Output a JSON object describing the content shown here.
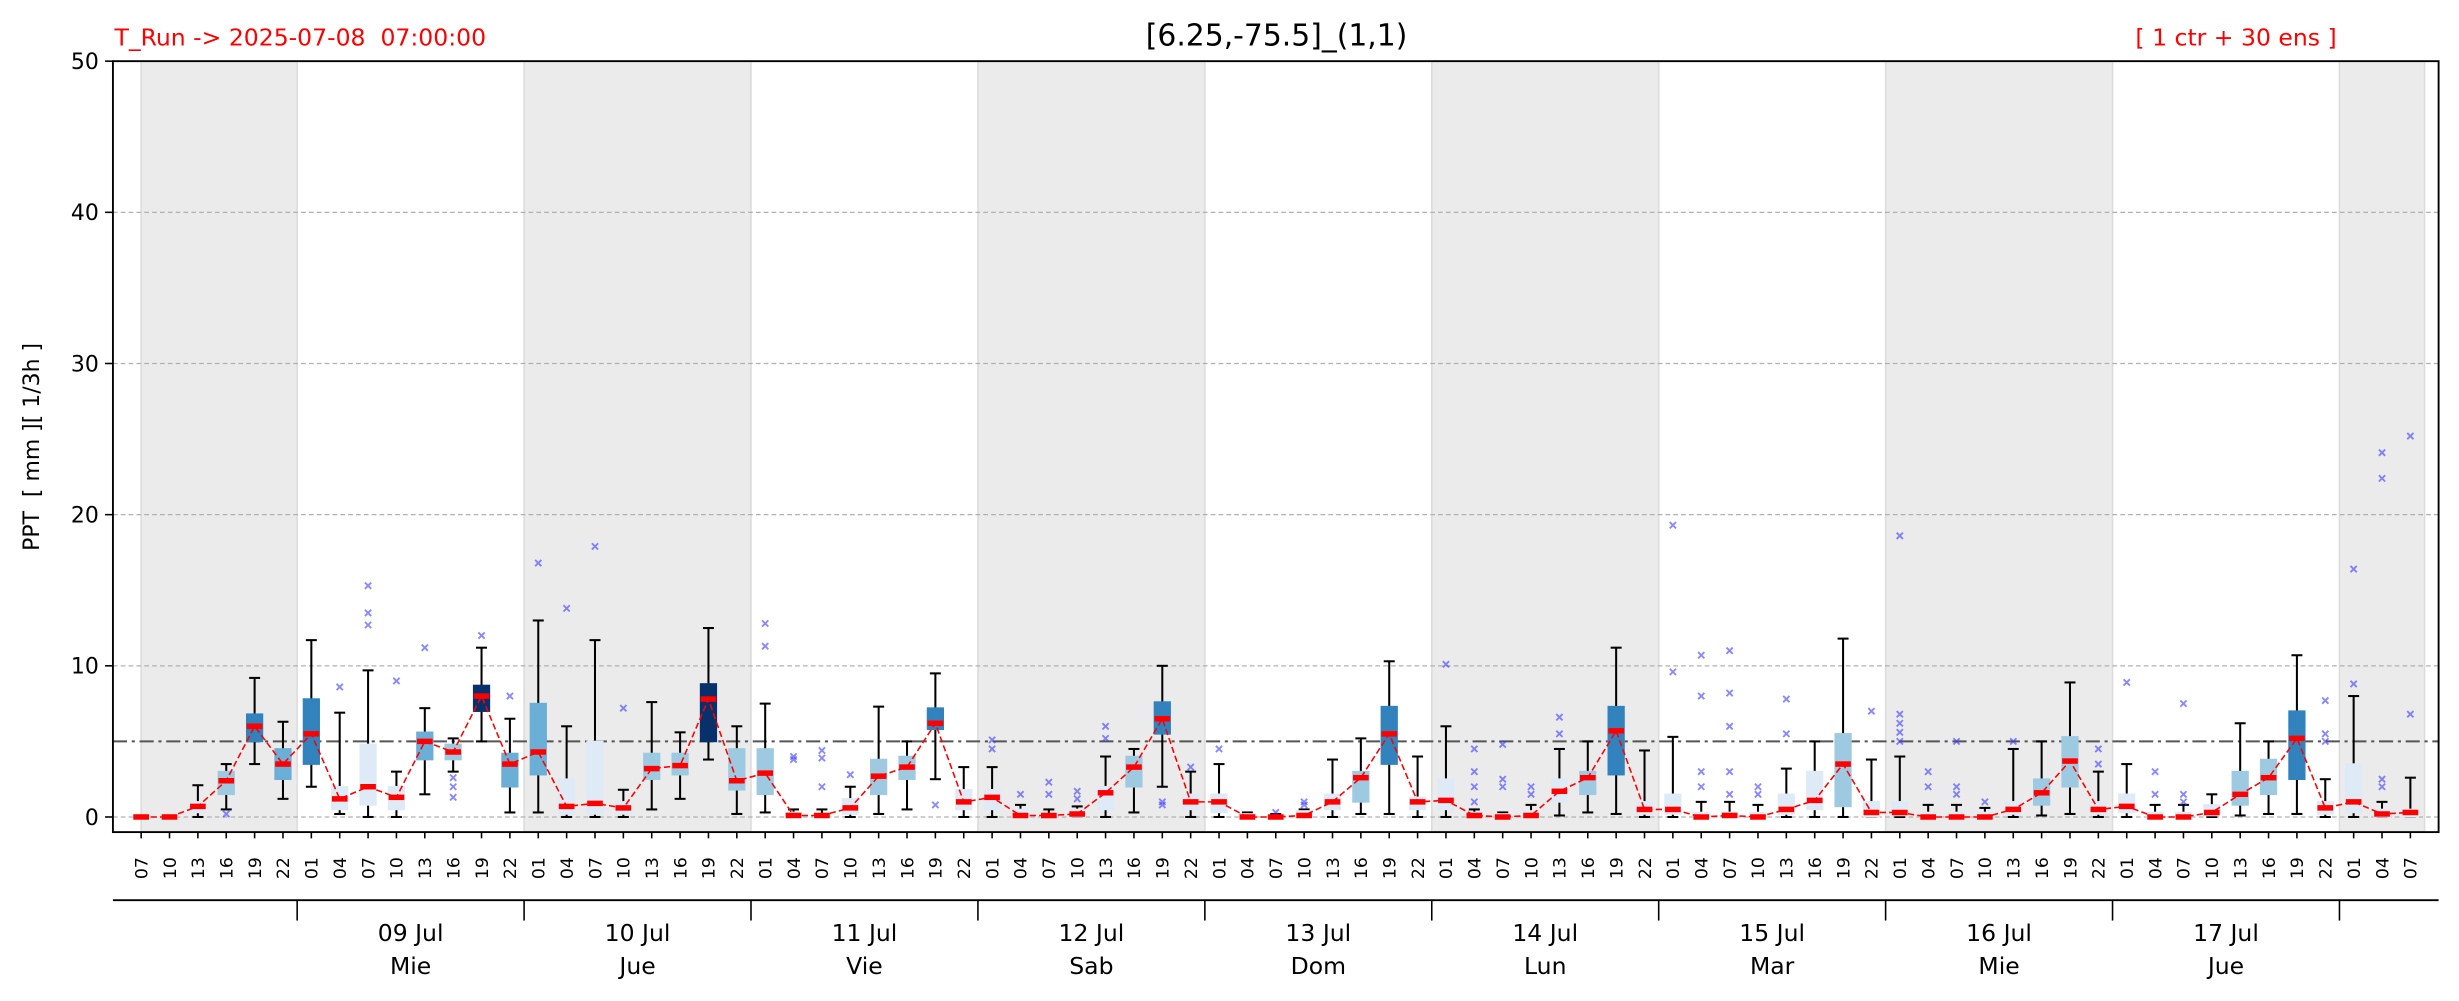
{
  "chart_data": {
    "type": "box",
    "title": "[6.25,-75.5]_(1,1)",
    "run_label": "T_Run -> 2025-07-08  07:00:00",
    "members_label": "[ 1 ctr + 30 ens ]",
    "y_label": "PPT  [ mm ][ 1/3h ]",
    "ylim": [
      -1,
      50
    ],
    "yticks": [
      0,
      10,
      20,
      30,
      40,
      50
    ],
    "grid": true,
    "threshold": 5,
    "categories": [
      "07",
      "10",
      "13",
      "16",
      "19",
      "22",
      "01",
      "04",
      "07",
      "10",
      "13",
      "16",
      "19",
      "22",
      "01",
      "04",
      "07",
      "10",
      "13",
      "16",
      "19",
      "22",
      "01",
      "04",
      "07",
      "10",
      "13",
      "16",
      "19",
      "22",
      "01",
      "04",
      "07",
      "10",
      "13",
      "16",
      "19",
      "22",
      "01",
      "04",
      "07",
      "10",
      "13",
      "16",
      "19",
      "22",
      "01",
      "04",
      "07",
      "10",
      "13",
      "16",
      "19",
      "22",
      "01",
      "04",
      "07",
      "10",
      "13",
      "16",
      "19",
      "22",
      "01",
      "04",
      "07",
      "10",
      "13",
      "16",
      "19",
      "22",
      "01",
      "04",
      "07",
      "10",
      "13",
      "16",
      "19",
      "22",
      "01",
      "04",
      "07"
    ],
    "days": [
      {
        "date": "09 Jul",
        "weekday": "Mie"
      },
      {
        "date": "10 Jul",
        "weekday": "Jue"
      },
      {
        "date": "11 Jul",
        "weekday": "Vie"
      },
      {
        "date": "12 Jul",
        "weekday": "Sab"
      },
      {
        "date": "13 Jul",
        "weekday": "Dom"
      },
      {
        "date": "14 Jul",
        "weekday": "Lun"
      },
      {
        "date": "15 Jul",
        "weekday": "Mar"
      },
      {
        "date": "16 Jul",
        "weekday": "Mie"
      },
      {
        "date": "17 Jul",
        "weekday": "Jue"
      }
    ],
    "median": [
      0,
      0,
      0.7,
      2.4,
      6,
      3.5,
      5.5,
      1.2,
      2,
      1.3,
      5,
      4.3,
      8,
      3.5,
      4.3,
      0.7,
      0.9,
      0.6,
      3.2,
      3.4,
      7.8,
      2.4,
      2.9,
      0.1,
      0.1,
      0.6,
      2.7,
      3.3,
      6.2,
      1,
      1.3,
      0.1,
      0.1,
      0.2,
      1.6,
      3.3,
      6.5,
      1,
      1,
      0,
      0,
      0.1,
      1,
      2.6,
      5.5,
      1,
      1.1,
      0.1,
      0,
      0.1,
      1.7,
      2.6,
      5.7,
      0.5,
      0.5,
      0,
      0.1,
      0,
      0.5,
      1.1,
      3.5,
      0.3,
      0.3,
      0,
      0,
      0,
      0.5,
      1.6,
      3.7,
      0.5,
      0.7,
      0,
      0,
      0.3,
      1.5,
      2.6,
      5.2,
      0.6,
      1,
      0.2,
      0.3
    ],
    "q1": [
      0,
      0,
      0.3,
      1.5,
      5,
      2.5,
      3.5,
      0.5,
      0.8,
      0.5,
      3.8,
      3.8,
      7,
      2,
      2.8,
      0.2,
      0.2,
      0.2,
      2.5,
      2.8,
      5,
      1.8,
      1.5,
      0,
      0,
      0.2,
      1.5,
      2.5,
      5.8,
      0.5,
      0.5,
      0,
      0,
      0,
      0.5,
      2,
      5.5,
      0.5,
      0.3,
      0,
      0,
      0,
      0.5,
      1,
      3.5,
      0.5,
      0.5,
      0,
      0,
      0,
      1,
      1.5,
      2.8,
      0.2,
      0.2,
      0,
      0,
      0,
      0.2,
      0.5,
      0.7,
      0,
      0.1,
      0,
      0,
      0,
      0.2,
      0.8,
      2,
      0.2,
      0.3,
      0,
      0,
      0.1,
      0.8,
      1.5,
      2.5,
      0.2,
      0.3,
      0,
      0
    ],
    "q3": [
      0.1,
      0.1,
      1,
      3,
      6.8,
      4.5,
      7.8,
      2,
      4.8,
      2,
      5.6,
      4.8,
      8.7,
      4.2,
      7.5,
      2.5,
      5,
      1,
      4.2,
      4.2,
      8.8,
      4.5,
      4.5,
      0.3,
      0.2,
      1.2,
      3.8,
      4,
      7.2,
      1.8,
      1.8,
      0.5,
      0.2,
      0.5,
      2,
      4,
      7.6,
      1.5,
      1.5,
      0.2,
      0.1,
      0.4,
      1.5,
      3,
      7.3,
      1.3,
      2.5,
      0.3,
      0.2,
      0.4,
      2.5,
      3,
      7.3,
      1,
      1.5,
      0.3,
      0.3,
      0.3,
      1.5,
      3,
      5.5,
      1,
      1,
      0.3,
      0.3,
      0.3,
      1,
      2.5,
      5.3,
      1,
      1.5,
      0.3,
      0.3,
      0.8,
      3,
      3.8,
      7,
      1,
      3.5,
      0.5,
      0.5
    ],
    "whisker_low": [
      0,
      0,
      0,
      0.5,
      3.5,
      1.2,
      2,
      0.2,
      0,
      0,
      1.5,
      3,
      5,
      0.3,
      0.3,
      0,
      0,
      0,
      0.5,
      1.2,
      3.8,
      0.2,
      0.3,
      0,
      0,
      0,
      0.2,
      0.5,
      2.5,
      0,
      0,
      0,
      0,
      0,
      0,
      0.3,
      2,
      0,
      0,
      0,
      0,
      0,
      0,
      0.2,
      0.2,
      0,
      0,
      0,
      0,
      0,
      0.1,
      0.3,
      0.2,
      0,
      0,
      0,
      0,
      0,
      0,
      0,
      0,
      0,
      0,
      0,
      0,
      0,
      0,
      0.1,
      0.2,
      0,
      0,
      0,
      0,
      0,
      0.1,
      0.2,
      0.2,
      0,
      0,
      0,
      0
    ],
    "whisker_high": [
      0.1,
      0.1,
      2.1,
      3.5,
      9.2,
      6.3,
      11.7,
      6.9,
      9.7,
      3,
      7.2,
      5.2,
      11.2,
      6.5,
      13,
      6,
      11.7,
      1.8,
      7.6,
      5.6,
      12.5,
      6,
      7.5,
      0.5,
      0.5,
      2,
      7.3,
      5,
      9.5,
      3.3,
      3.3,
      0.8,
      0.5,
      0.7,
      4,
      4.5,
      10,
      3,
      3.5,
      0.3,
      0.2,
      0.5,
      3.8,
      5.2,
      10.3,
      4,
      6,
      0.5,
      0.3,
      0.8,
      4.5,
      5,
      11.2,
      4.4,
      5.3,
      1,
      1,
      0.8,
      3.2,
      5,
      11.8,
      3.8,
      4,
      0.8,
      0.8,
      0.6,
      4.5,
      5,
      8.9,
      3,
      3.5,
      0.8,
      0.8,
      1.5,
      6.2,
      5,
      10.7,
      2.5,
      8,
      1,
      2.6
    ],
    "outliers": [
      [],
      [],
      [],
      [
        0.2
      ],
      [],
      [],
      [],
      [
        8.6
      ],
      [
        12.7,
        13.5,
        15.3
      ],
      [
        9
      ],
      [
        11.2
      ],
      [
        1.3,
        2,
        2.6
      ],
      [
        12
      ],
      [
        8
      ],
      [
        16.8
      ],
      [
        13.8
      ],
      [
        17.9
      ],
      [
        7.2
      ],
      [],
      [],
      [],
      [],
      [
        11.3,
        12.8
      ],
      [
        3.8,
        4
      ],
      [
        2,
        3.9,
        4.4
      ],
      [
        2.8
      ],
      [],
      [],
      [
        0.8
      ],
      [],
      [
        4.5,
        5.1
      ],
      [
        1.5
      ],
      [
        1.5,
        2.3
      ],
      [
        1.2,
        1.7
      ],
      [
        5.2,
        6
      ],
      [],
      [
        0.8,
        1
      ],
      [
        3.3
      ],
      [
        4.5
      ],
      [],
      [
        0.3
      ],
      [
        0.8,
        1
      ],
      [],
      [],
      [],
      [],
      [
        10.1
      ],
      [
        1,
        2,
        3,
        4.5
      ],
      [
        2,
        2.5,
        4.8
      ],
      [
        1.5,
        2
      ],
      [
        5.5,
        6.6
      ],
      [],
      [],
      [],
      [
        9.6,
        19.3
      ],
      [
        2,
        3,
        8,
        10.7
      ],
      [
        1.5,
        3,
        6,
        8.2,
        11
      ],
      [
        1.5,
        2
      ],
      [
        5.5,
        7.8
      ],
      [],
      [],
      [
        7
      ],
      [
        5,
        5.6,
        6.2,
        6.8,
        18.6
      ],
      [
        2,
        3
      ],
      [
        1.5,
        2,
        5
      ],
      [
        1
      ],
      [
        5
      ],
      [],
      [],
      [
        3.5,
        4.5
      ],
      [
        8.9
      ],
      [
        1.5,
        3
      ],
      [
        1,
        1.5,
        7.5
      ],
      [],
      [],
      [],
      [],
      [
        5,
        5.5,
        7.7
      ],
      [
        8.8,
        16.4
      ],
      [
        2,
        2.5,
        22.4,
        24.1
      ],
      [
        6.8,
        25.2
      ]
    ],
    "box_colors": [
      "#deebf7",
      "#deebf7",
      "#deebf7",
      "#9ecae1",
      "#3182bd",
      "#6baed6",
      "#3182bd",
      "#deebf7",
      "#deebf7",
      "#deebf7",
      "#6baed6",
      "#9ecae1",
      "#08306b",
      "#6baed6",
      "#6baed6",
      "#deebf7",
      "#deebf7",
      "#deebf7",
      "#9ecae1",
      "#9ecae1",
      "#08306b",
      "#9ecae1",
      "#9ecae1",
      "#deebf7",
      "#deebf7",
      "#deebf7",
      "#9ecae1",
      "#9ecae1",
      "#3182bd",
      "#deebf7",
      "#deebf7",
      "#deebf7",
      "#deebf7",
      "#deebf7",
      "#deebf7",
      "#9ecae1",
      "#3182bd",
      "#deebf7",
      "#deebf7",
      "#deebf7",
      "#deebf7",
      "#deebf7",
      "#deebf7",
      "#9ecae1",
      "#3182bd",
      "#deebf7",
      "#deebf7",
      "#deebf7",
      "#deebf7",
      "#deebf7",
      "#deebf7",
      "#9ecae1",
      "#3182bd",
      "#deebf7",
      "#deebf7",
      "#deebf7",
      "#deebf7",
      "#deebf7",
      "#deebf7",
      "#deebf7",
      "#9ecae1",
      "#deebf7",
      "#deebf7",
      "#deebf7",
      "#deebf7",
      "#deebf7",
      "#deebf7",
      "#9ecae1",
      "#9ecae1",
      "#deebf7",
      "#deebf7",
      "#deebf7",
      "#deebf7",
      "#deebf7",
      "#9ecae1",
      "#9ecae1",
      "#3182bd",
      "#deebf7",
      "#deebf7",
      "#deebf7",
      "#deebf7"
    ],
    "median_color": "#ff0000",
    "outlier_color": "#3b3bff",
    "shade_color": "#ebebeb",
    "label_color": "#ff0000"
  }
}
